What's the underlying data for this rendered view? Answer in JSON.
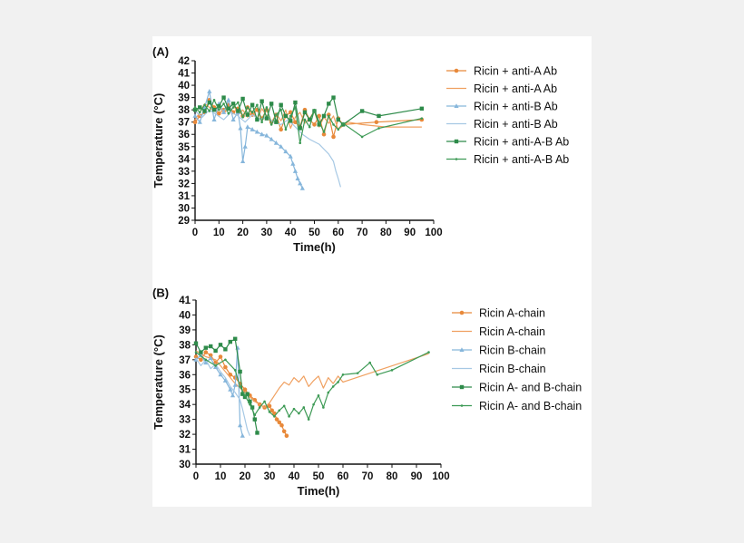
{
  "chart_data": [
    {
      "panel_label": "(A)",
      "type": "line",
      "xlabel": "Time(h)",
      "ylabel": "Temperature (°C)",
      "xlim": [
        0,
        100
      ],
      "ylim": [
        29,
        42
      ],
      "xticks": [
        0,
        10,
        20,
        30,
        40,
        50,
        60,
        70,
        80,
        90,
        100
      ],
      "yticks": [
        29,
        30,
        31,
        32,
        33,
        34,
        35,
        36,
        37,
        38,
        39,
        40,
        41,
        42
      ],
      "grid": false,
      "legend_position": "right",
      "series": [
        {
          "name": "Ricin + anti-A Ab",
          "color": "#e8893a",
          "marker": "circle",
          "x": [
            0,
            2,
            4,
            6,
            8,
            10,
            12,
            14,
            16,
            18,
            20,
            22,
            24,
            26,
            28,
            30,
            32,
            34,
            36,
            38,
            40,
            42,
            44,
            46,
            48,
            50,
            52,
            54,
            56,
            58,
            60,
            62,
            76,
            95
          ],
          "y": [
            37.0,
            37.5,
            37.8,
            38.8,
            38.2,
            37.7,
            38.0,
            38.4,
            37.8,
            38.1,
            37.5,
            38.2,
            37.6,
            38.0,
            37.3,
            38.0,
            37.0,
            37.6,
            36.4,
            37.5,
            37.8,
            37.0,
            36.6,
            38.0,
            37.2,
            36.8,
            37.5,
            36.0,
            37.6,
            35.8,
            37.3,
            36.8,
            37.0,
            37.2
          ]
        },
        {
          "name": "Ricin + anti-A Ab",
          "color": "#f0a060",
          "marker": "none",
          "x": [
            0,
            2,
            4,
            6,
            8,
            10,
            12,
            14,
            16,
            18,
            20,
            22,
            24,
            26,
            28,
            30,
            32,
            34,
            36,
            38,
            40,
            42,
            44,
            46,
            48,
            50,
            52,
            54,
            56,
            58,
            60,
            64,
            70,
            80,
            95
          ],
          "y": [
            37.2,
            37.8,
            38.5,
            38.2,
            37.9,
            38.3,
            37.7,
            38.1,
            38.5,
            37.6,
            38.0,
            37.4,
            37.9,
            37.2,
            38.1,
            37.5,
            36.9,
            37.7,
            37.1,
            38.0,
            36.5,
            37.4,
            37.8,
            36.9,
            37.3,
            37.9,
            36.6,
            37.4,
            36.9,
            37.5,
            36.4,
            37.0,
            36.8,
            36.6,
            36.6
          ]
        },
        {
          "name": "Ricin + anti-B Ab",
          "color": "#86b6db",
          "marker": "triangle",
          "x": [
            0,
            2,
            4,
            6,
            8,
            10,
            12,
            14,
            16,
            18,
            19,
            20,
            21,
            22,
            24,
            26,
            28,
            30,
            32,
            34,
            36,
            38,
            40,
            41,
            42,
            43,
            44,
            45
          ],
          "y": [
            37.5,
            37.0,
            38.2,
            39.5,
            37.2,
            38.5,
            37.8,
            38.8,
            37.2,
            37.8,
            36.5,
            33.8,
            35.0,
            36.6,
            36.4,
            36.2,
            36.0,
            35.9,
            35.6,
            35.3,
            35.0,
            34.6,
            34.2,
            33.6,
            33.0,
            32.4,
            32.0,
            31.6
          ]
        },
        {
          "name": "Ricin + anti-B Ab",
          "color": "#a6c8e4",
          "marker": "none",
          "x": [
            0,
            3,
            6,
            9,
            12,
            15,
            18,
            21,
            24,
            27,
            30,
            33,
            36,
            39,
            42,
            45,
            48,
            50,
            52,
            54,
            56,
            58,
            59,
            60,
            61
          ],
          "y": [
            37.9,
            37.4,
            38.0,
            37.6,
            37.2,
            37.8,
            37.5,
            37.0,
            37.6,
            37.2,
            37.4,
            37.0,
            36.8,
            37.2,
            36.6,
            36.0,
            35.6,
            35.4,
            35.2,
            34.8,
            34.4,
            33.8,
            33.0,
            32.4,
            31.7
          ]
        },
        {
          "name": "Ricin + anti-A-B Ab",
          "color": "#2e8b4a",
          "marker": "square",
          "x": [
            0,
            2,
            4,
            6,
            8,
            10,
            12,
            14,
            16,
            18,
            20,
            22,
            24,
            26,
            28,
            30,
            32,
            34,
            36,
            38,
            40,
            42,
            44,
            46,
            48,
            50,
            52,
            54,
            56,
            58,
            60,
            62,
            70,
            77,
            95
          ],
          "y": [
            38.0,
            38.2,
            37.9,
            38.6,
            38.0,
            38.3,
            39.0,
            38.1,
            38.5,
            37.9,
            38.9,
            37.6,
            38.4,
            37.2,
            38.7,
            37.3,
            38.5,
            37.0,
            38.4,
            37.5,
            37.1,
            38.6,
            36.5,
            37.8,
            37.2,
            37.9,
            36.8,
            37.5,
            38.5,
            39.0,
            37.2,
            36.8,
            37.9,
            37.5,
            38.1
          ]
        },
        {
          "name": "Ricin + anti-A-B Ab",
          "color": "#3d9a55",
          "marker": "dot",
          "x": [
            0,
            2,
            4,
            6,
            8,
            10,
            12,
            14,
            16,
            18,
            20,
            22,
            24,
            26,
            28,
            30,
            32,
            34,
            36,
            38,
            40,
            42,
            44,
            46,
            48,
            50,
            52,
            54,
            56,
            58,
            60,
            62,
            70,
            77,
            95
          ],
          "y": [
            38.2,
            37.8,
            38.4,
            37.9,
            38.8,
            38.0,
            38.5,
            37.7,
            38.2,
            38.6,
            37.4,
            38.2,
            37.8,
            38.4,
            37.0,
            38.2,
            36.8,
            37.6,
            38.0,
            36.4,
            37.5,
            38.2,
            35.3,
            37.2,
            36.6,
            38.0,
            37.0,
            36.2,
            37.5,
            36.8,
            36.4,
            36.9,
            35.8,
            36.5,
            37.3
          ]
        }
      ]
    },
    {
      "panel_label": "(B)",
      "type": "line",
      "xlabel": "Time(h)",
      "ylabel": "Temperature (°C)",
      "xlim": [
        0,
        100
      ],
      "ylim": [
        30,
        41
      ],
      "xticks": [
        0,
        10,
        20,
        30,
        40,
        50,
        60,
        70,
        80,
        90,
        100
      ],
      "yticks": [
        30,
        31,
        32,
        33,
        34,
        35,
        36,
        37,
        38,
        39,
        40,
        41
      ],
      "grid": false,
      "legend_position": "right",
      "series": [
        {
          "name": "Ricin A-chain",
          "color": "#e8893a",
          "marker": "circle",
          "x": [
            0,
            2,
            4,
            6,
            8,
            10,
            12,
            14,
            16,
            18,
            20,
            22,
            24,
            26,
            28,
            30,
            31,
            32,
            33,
            34,
            35,
            36,
            37
          ],
          "y": [
            37.2,
            37.0,
            37.5,
            37.3,
            36.8,
            37.2,
            36.5,
            36.0,
            35.8,
            35.4,
            35.0,
            34.6,
            34.3,
            34.0,
            33.8,
            33.9,
            33.6,
            33.4,
            33.0,
            32.8,
            32.6,
            32.2,
            31.9
          ]
        },
        {
          "name": "Ricin A-chain",
          "color": "#f0a060",
          "marker": "none",
          "x": [
            0,
            4,
            8,
            12,
            16,
            20,
            24,
            28,
            30,
            32,
            34,
            36,
            38,
            40,
            42,
            44,
            46,
            48,
            50,
            52,
            54,
            56,
            58,
            60,
            95
          ],
          "y": [
            37.6,
            37.2,
            37.0,
            36.2,
            35.4,
            34.8,
            34.2,
            33.8,
            34.1,
            34.6,
            35.1,
            35.5,
            35.3,
            35.8,
            35.5,
            35.9,
            35.2,
            35.6,
            35.9,
            35.1,
            35.8,
            35.4,
            35.9,
            35.5,
            37.4
          ]
        },
        {
          "name": "Ricin B-chain",
          "color": "#86b6db",
          "marker": "triangle",
          "x": [
            0,
            2,
            4,
            6,
            8,
            10,
            12,
            14,
            15,
            16,
            17,
            18,
            19
          ],
          "y": [
            37.0,
            37.3,
            36.8,
            37.1,
            36.5,
            36.0,
            35.6,
            35.0,
            34.6,
            35.3,
            37.8,
            32.6,
            31.9
          ]
        },
        {
          "name": "Ricin B-chain",
          "color": "#a6c8e4",
          "marker": "none",
          "x": [
            0,
            2,
            4,
            6,
            8,
            10,
            12,
            14,
            16,
            18,
            19,
            20,
            21,
            22
          ],
          "y": [
            37.1,
            36.6,
            37.0,
            36.4,
            36.7,
            36.2,
            35.8,
            35.2,
            34.8,
            34.3,
            33.7,
            33.0,
            32.3,
            31.9
          ]
        },
        {
          "name": "Ricin A- and B-chain",
          "color": "#2e8b4a",
          "marker": "square",
          "x": [
            0,
            2,
            4,
            6,
            8,
            10,
            12,
            14,
            16,
            18,
            19,
            20,
            21,
            22,
            23,
            24,
            25
          ],
          "y": [
            38.1,
            37.5,
            37.8,
            37.9,
            37.6,
            38.0,
            37.7,
            38.2,
            38.4,
            36.2,
            34.7,
            34.5,
            34.7,
            34.2,
            33.8,
            33.0,
            32.1
          ]
        },
        {
          "name": "Ricin A- and B-chain",
          "color": "#3d9a55",
          "marker": "dot",
          "x": [
            0,
            4,
            8,
            12,
            16,
            18,
            20,
            22,
            24,
            26,
            28,
            30,
            32,
            34,
            36,
            38,
            40,
            42,
            44,
            46,
            48,
            50,
            52,
            54,
            56,
            58,
            60,
            66,
            71,
            74,
            80,
            95
          ],
          "y": [
            37.5,
            37.0,
            36.6,
            37.0,
            36.3,
            35.2,
            34.6,
            34.0,
            33.3,
            33.8,
            34.2,
            33.5,
            33.2,
            33.6,
            33.9,
            33.2,
            33.7,
            33.4,
            33.8,
            33.0,
            34.0,
            34.6,
            33.8,
            34.8,
            35.2,
            35.5,
            36.0,
            36.1,
            36.8,
            36.0,
            36.3,
            37.5
          ]
        }
      ]
    }
  ]
}
